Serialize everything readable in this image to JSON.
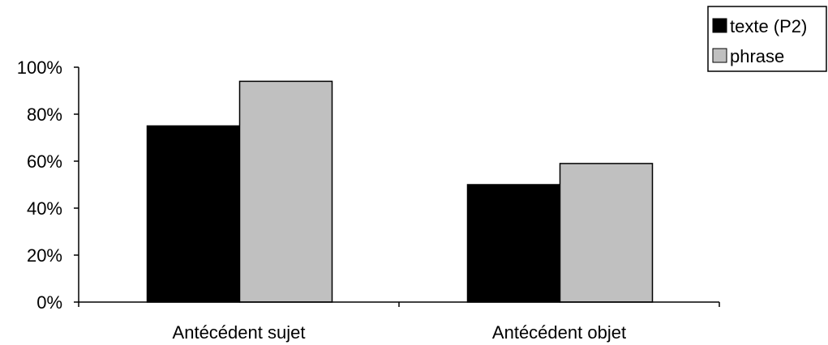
{
  "chart_data": {
    "type": "bar",
    "categories": [
      "Antécédent sujet",
      "Antécédent objet"
    ],
    "series": [
      {
        "name": "texte (P2)",
        "values": [
          75,
          50
        ],
        "color": "#000000"
      },
      {
        "name": "phrase",
        "values": [
          94,
          59
        ],
        "color": "#c0c0c0"
      }
    ],
    "ylim": [
      0,
      100
    ],
    "y_ticks": [
      "0%",
      "20%",
      "40%",
      "60%",
      "80%",
      "100%"
    ],
    "y_tick_values": [
      0,
      20,
      40,
      60,
      80,
      100
    ],
    "grid": false,
    "legend_position": "top-right",
    "bar_edge_color": "#000000"
  }
}
